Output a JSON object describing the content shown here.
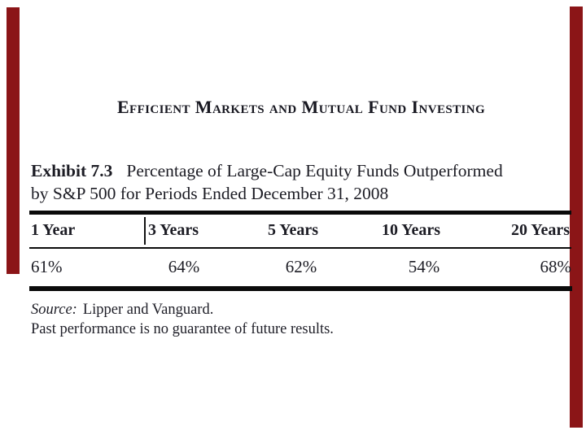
{
  "page": {
    "background_color": "#ffffff",
    "accent_color": "#8b1517",
    "text_color": "#1c1c24",
    "rule_color": "#0b0b0b"
  },
  "header": {
    "running_head": "Efficient Markets and Mutual Fund Investing"
  },
  "exhibit": {
    "label": "Exhibit 7.3",
    "title_line1": "Percentage of Large-Cap Equity Funds Outperformed",
    "title_line2": "by S&P 500 for Periods Ended December 31, 2008"
  },
  "table": {
    "columns": [
      {
        "header": "1 Year",
        "value": "61%"
      },
      {
        "header": "3 Years",
        "value": "64%"
      },
      {
        "header": "5 Years",
        "value": "62%"
      },
      {
        "header": "10 Years",
        "value": "54%"
      },
      {
        "header": "20 Years",
        "value": "68%"
      }
    ]
  },
  "footnotes": {
    "source_label": "Source:",
    "source_text": "Lipper and Vanguard.",
    "disclaimer": "Past performance is no guarantee of future results."
  }
}
